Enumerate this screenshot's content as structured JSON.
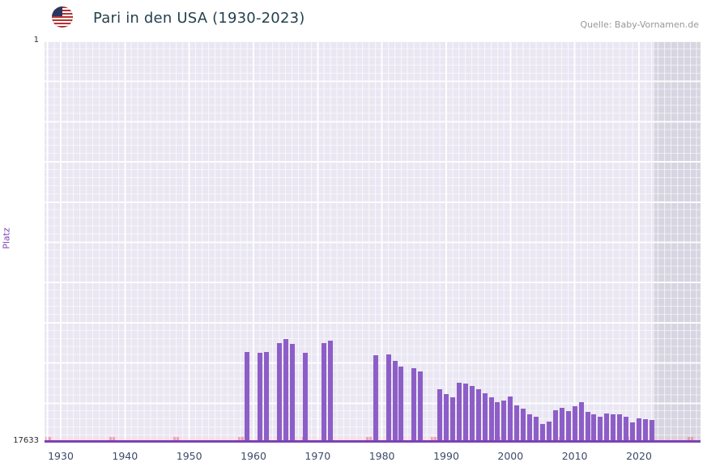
{
  "header": {
    "title": "Pari in den USA (1930-2023)",
    "source": "Quelle: Baby-Vornamen.de"
  },
  "axes": {
    "y_label": "Platz",
    "y_top_tick": "1",
    "y_bottom_tick": "17633",
    "x_ticks": [
      1930,
      1940,
      1950,
      1960,
      1970,
      1980,
      1990,
      2000,
      2010,
      2020
    ]
  },
  "colors": {
    "bar": "#8d5ec7",
    "axis_line": "#7b42b6",
    "plot_background": "#eae7f3",
    "unranked_strip": "#f8dfe7",
    "unranked_mark": "#efa2b4",
    "recent_band": "#d9d6de",
    "title_text": "#24414f",
    "y_label_text": "#7d3fb3"
  },
  "chart_data": {
    "type": "bar",
    "title": "Pari in den USA (1930-2023)",
    "xlabel": "",
    "ylabel": "Platz",
    "y_axis": {
      "min": 1,
      "max": 17633,
      "inverted": true,
      "top_label": "1",
      "bottom_label": "17633"
    },
    "x_range": [
      1930,
      2023
    ],
    "legend": null,
    "grid": true,
    "points": [
      {
        "year": 1959,
        "rank": 13650
      },
      {
        "year": 1961,
        "rank": 13700
      },
      {
        "year": 1962,
        "rank": 13650
      },
      {
        "year": 1964,
        "rank": 13250
      },
      {
        "year": 1965,
        "rank": 13100
      },
      {
        "year": 1966,
        "rank": 13300
      },
      {
        "year": 1968,
        "rank": 13700
      },
      {
        "year": 1971,
        "rank": 13250
      },
      {
        "year": 1972,
        "rank": 13150
      },
      {
        "year": 1979,
        "rank": 13800
      },
      {
        "year": 1981,
        "rank": 13750
      },
      {
        "year": 1982,
        "rank": 14050
      },
      {
        "year": 1983,
        "rank": 14300
      },
      {
        "year": 1985,
        "rank": 14350
      },
      {
        "year": 1986,
        "rank": 14500
      },
      {
        "year": 1989,
        "rank": 15300
      },
      {
        "year": 1990,
        "rank": 15500
      },
      {
        "year": 1991,
        "rank": 15650
      },
      {
        "year": 1992,
        "rank": 15000
      },
      {
        "year": 1993,
        "rank": 15050
      },
      {
        "year": 1994,
        "rank": 15150
      },
      {
        "year": 1995,
        "rank": 15300
      },
      {
        "year": 1996,
        "rank": 15450
      },
      {
        "year": 1997,
        "rank": 15650
      },
      {
        "year": 1998,
        "rank": 15850
      },
      {
        "year": 1999,
        "rank": 15800
      },
      {
        "year": 2000,
        "rank": 15600
      },
      {
        "year": 2001,
        "rank": 16000
      },
      {
        "year": 2002,
        "rank": 16150
      },
      {
        "year": 2003,
        "rank": 16400
      },
      {
        "year": 2004,
        "rank": 16500
      },
      {
        "year": 2005,
        "rank": 16800
      },
      {
        "year": 2006,
        "rank": 16700
      },
      {
        "year": 2007,
        "rank": 16200
      },
      {
        "year": 2008,
        "rank": 16100
      },
      {
        "year": 2009,
        "rank": 16250
      },
      {
        "year": 2010,
        "rank": 16050
      },
      {
        "year": 2011,
        "rank": 15850
      },
      {
        "year": 2012,
        "rank": 16300
      },
      {
        "year": 2013,
        "rank": 16400
      },
      {
        "year": 2014,
        "rank": 16500
      },
      {
        "year": 2015,
        "rank": 16350
      },
      {
        "year": 2016,
        "rank": 16400
      },
      {
        "year": 2017,
        "rank": 16400
      },
      {
        "year": 2018,
        "rank": 16500
      },
      {
        "year": 2019,
        "rank": 16750
      },
      {
        "year": 2020,
        "rank": 16550
      },
      {
        "year": 2021,
        "rank": 16600
      },
      {
        "year": 2022,
        "rank": 16650
      }
    ],
    "unranked_marker_years": [
      1928,
      1938,
      1948,
      1958,
      1968,
      1978,
      1988,
      1998,
      2008,
      2018,
      2028
    ]
  }
}
